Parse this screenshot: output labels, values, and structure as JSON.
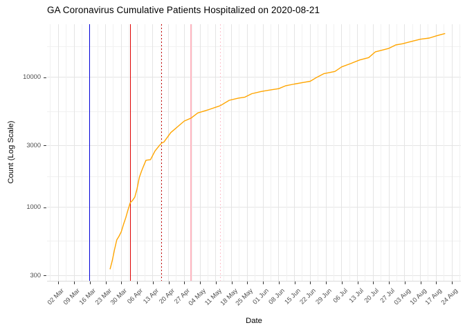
{
  "title": "GA Coronavirus Cumulative Patients Hospitalized on 2020-08-21",
  "chart_data": {
    "type": "line",
    "title": "GA Coronavirus Cumulative Patients Hospitalized on 2020-08-21",
    "xlabel": "Date",
    "ylabel": "Count (Log Scale)",
    "y_scale": "log10",
    "grid": true,
    "legend": "none",
    "x_domain": [
      "2020-02-26",
      "2020-08-28"
    ],
    "y_domain": [
      272,
      25700
    ],
    "y_major_ticks": [
      {
        "value": 300,
        "label": "300"
      },
      {
        "value": 1000,
        "label": "1000"
      },
      {
        "value": 3000,
        "label": "3000"
      },
      {
        "value": 10000,
        "label": "10000"
      }
    ],
    "y_minor_ticks": [
      548,
      1732,
      5477,
      17320
    ],
    "x_ticks": [
      {
        "date": "2020-03-02",
        "label": "02 Mar"
      },
      {
        "date": "2020-03-09",
        "label": "09 Mar"
      },
      {
        "date": "2020-03-16",
        "label": "16 Mar"
      },
      {
        "date": "2020-03-23",
        "label": "23 Mar"
      },
      {
        "date": "2020-03-30",
        "label": "30 Mar"
      },
      {
        "date": "2020-04-06",
        "label": "06 Apr"
      },
      {
        "date": "2020-04-13",
        "label": "13 Apr"
      },
      {
        "date": "2020-04-20",
        "label": "20 Apr"
      },
      {
        "date": "2020-04-27",
        "label": "27 Apr"
      },
      {
        "date": "2020-05-04",
        "label": "04 May"
      },
      {
        "date": "2020-05-11",
        "label": "11 May"
      },
      {
        "date": "2020-05-18",
        "label": "18 May"
      },
      {
        "date": "2020-05-25",
        "label": "25 May"
      },
      {
        "date": "2020-06-01",
        "label": "01 Jun"
      },
      {
        "date": "2020-06-08",
        "label": "08 Jun"
      },
      {
        "date": "2020-06-15",
        "label": "15 Jun"
      },
      {
        "date": "2020-06-22",
        "label": "22 Jun"
      },
      {
        "date": "2020-06-29",
        "label": "29 Jun"
      },
      {
        "date": "2020-07-06",
        "label": "06 Jul"
      },
      {
        "date": "2020-07-13",
        "label": "13 Jul"
      },
      {
        "date": "2020-07-20",
        "label": "20 Jul"
      },
      {
        "date": "2020-07-27",
        "label": "27 Jul"
      },
      {
        "date": "2020-08-03",
        "label": "03 Aug"
      },
      {
        "date": "2020-08-10",
        "label": "10 Aug"
      },
      {
        "date": "2020-08-17",
        "label": "17 Aug"
      },
      {
        "date": "2020-08-24",
        "label": "24 Aug"
      }
    ],
    "reference_lines": [
      {
        "date": "2020-03-16",
        "color": "#0000d8",
        "style": "solid",
        "name": "refline-blue"
      },
      {
        "date": "2020-04-03",
        "color": "#de0000",
        "style": "solid",
        "name": "refline-red"
      },
      {
        "date": "2020-04-17",
        "color": "#c40000",
        "style": "dotted",
        "name": "refline-red-dotted"
      },
      {
        "date": "2020-04-30",
        "color": "#ffb6c1",
        "style": "solid",
        "name": "refline-pink"
      },
      {
        "date": "2020-05-13",
        "color": "#ffc0cb",
        "style": "dotted",
        "name": "refline-pink-dotted"
      }
    ],
    "series": [
      {
        "name": "cumulative-patients-hospitalized",
        "color": "#ffa500",
        "points": [
          [
            "2020-03-25",
            334
          ],
          [
            "2020-03-26",
            390
          ],
          [
            "2020-03-27",
            473
          ],
          [
            "2020-03-28",
            563
          ],
          [
            "2020-03-29",
            600
          ],
          [
            "2020-03-30",
            650
          ],
          [
            "2020-03-31",
            740
          ],
          [
            "2020-04-01",
            833
          ],
          [
            "2020-04-02",
            958
          ],
          [
            "2020-04-03",
            1087
          ],
          [
            "2020-04-04",
            1130
          ],
          [
            "2020-04-05",
            1199
          ],
          [
            "2020-04-06",
            1384
          ],
          [
            "2020-04-07",
            1696
          ],
          [
            "2020-04-08",
            1900
          ],
          [
            "2020-04-09",
            2100
          ],
          [
            "2020-04-10",
            2304
          ],
          [
            "2020-04-12",
            2330
          ],
          [
            "2020-04-14",
            2717
          ],
          [
            "2020-04-16",
            3000
          ],
          [
            "2020-04-17",
            3131
          ],
          [
            "2020-04-18",
            3190
          ],
          [
            "2020-04-21",
            3763
          ],
          [
            "2020-04-24",
            4169
          ],
          [
            "2020-04-27",
            4619
          ],
          [
            "2020-04-30",
            4865
          ],
          [
            "2020-05-03",
            5330
          ],
          [
            "2020-05-08",
            5662
          ],
          [
            "2020-05-13",
            6067
          ],
          [
            "2020-05-17",
            6668
          ],
          [
            "2020-05-21",
            6930
          ],
          [
            "2020-05-24",
            7060
          ],
          [
            "2020-05-27",
            7500
          ],
          [
            "2020-05-31",
            7790
          ],
          [
            "2020-06-04",
            8000
          ],
          [
            "2020-06-08",
            8200
          ],
          [
            "2020-06-11",
            8620
          ],
          [
            "2020-06-15",
            8900
          ],
          [
            "2020-06-19",
            9150
          ],
          [
            "2020-06-22",
            9350
          ],
          [
            "2020-06-25",
            10030
          ],
          [
            "2020-06-28",
            10680
          ],
          [
            "2020-07-03",
            11120
          ],
          [
            "2020-07-06",
            12060
          ],
          [
            "2020-07-10",
            12800
          ],
          [
            "2020-07-14",
            13630
          ],
          [
            "2020-07-18",
            14210
          ],
          [
            "2020-07-21",
            15750
          ],
          [
            "2020-07-23",
            16070
          ],
          [
            "2020-07-27",
            16750
          ],
          [
            "2020-07-30",
            17800
          ],
          [
            "2020-08-02",
            18170
          ],
          [
            "2020-08-06",
            18940
          ],
          [
            "2020-08-10",
            19700
          ],
          [
            "2020-08-14",
            20100
          ],
          [
            "2020-08-17",
            20900
          ],
          [
            "2020-08-21",
            21800
          ]
        ]
      }
    ]
  }
}
